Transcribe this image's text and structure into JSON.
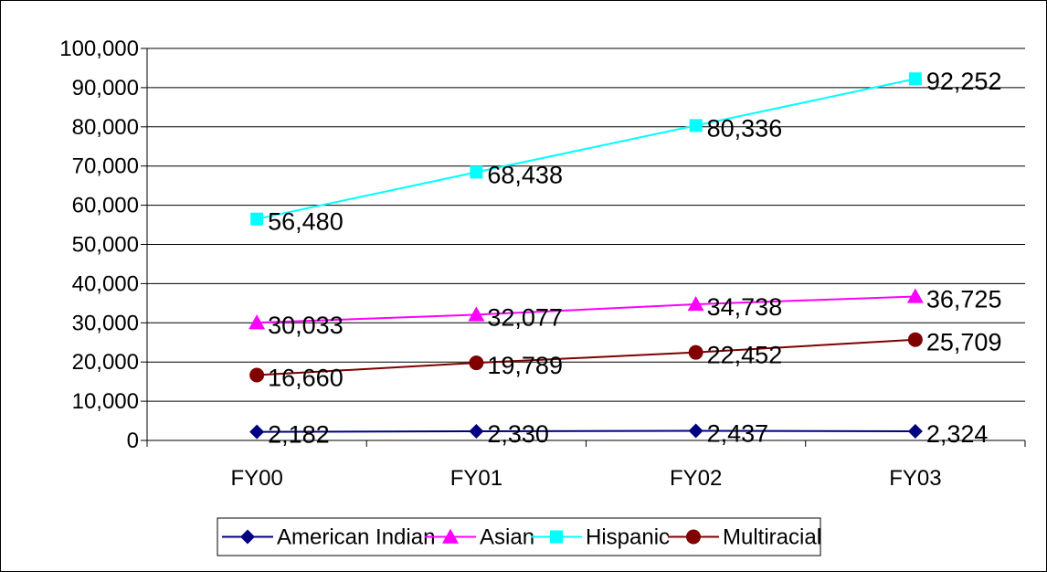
{
  "chart_data": {
    "type": "line",
    "categories": [
      "FY00",
      "FY01",
      "FY02",
      "FY03"
    ],
    "ylim": [
      0,
      100000
    ],
    "yticks": [
      0,
      10000,
      20000,
      30000,
      40000,
      50000,
      60000,
      70000,
      80000,
      90000,
      100000
    ],
    "ytick_labels": [
      "0",
      "10,000",
      "20,000",
      "30,000",
      "40,000",
      "50,000",
      "60,000",
      "70,000",
      "80,000",
      "90,000",
      "100,000"
    ],
    "grid": "horizontal",
    "legend": "bottom",
    "series": [
      {
        "name": "American Indian",
        "color": "#000080",
        "marker": "diamond",
        "values": [
          2182,
          2330,
          2437,
          2324
        ],
        "labels": [
          "2,182",
          "2,330",
          "2,437",
          "2,324"
        ]
      },
      {
        "name": "Asian",
        "color": "#ff00ff",
        "marker": "triangle",
        "values": [
          30033,
          32077,
          34738,
          36725
        ],
        "labels": [
          "30,033",
          "32,077",
          "34,738",
          "36,725"
        ]
      },
      {
        "name": "Hispanic",
        "color": "#00ffff",
        "marker": "square",
        "values": [
          56480,
          68438,
          80336,
          92252
        ],
        "labels": [
          "56,480",
          "68,438",
          "80,336",
          "92,252"
        ]
      },
      {
        "name": "Multiracial",
        "color": "#800000",
        "marker": "circle",
        "values": [
          16660,
          19789,
          22452,
          25709
        ],
        "labels": [
          "16,660",
          "19,789",
          "22,452",
          "25,709"
        ]
      }
    ]
  }
}
